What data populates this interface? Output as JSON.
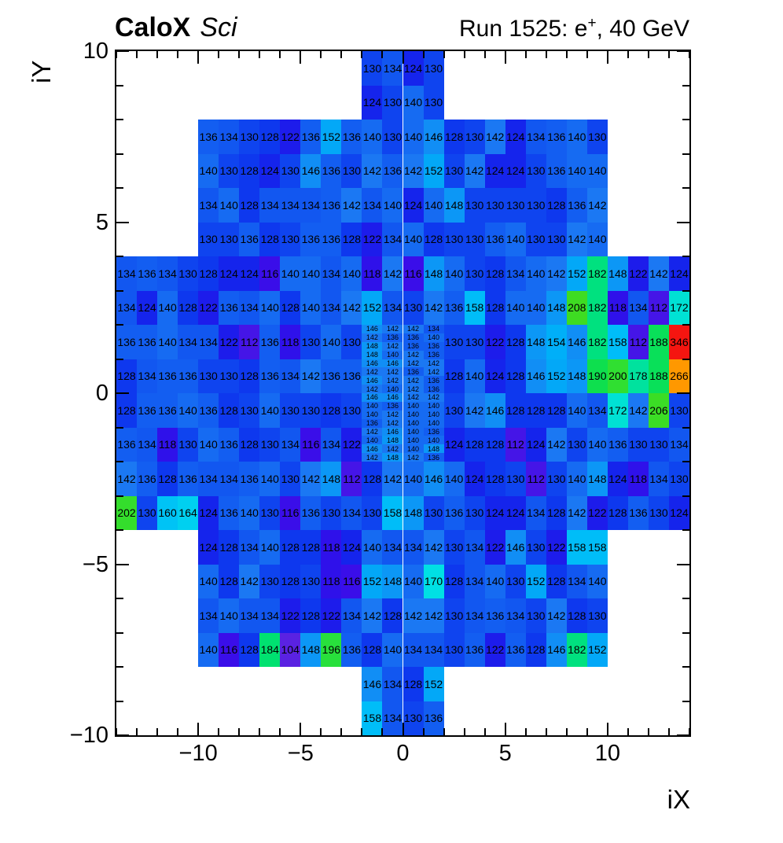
{
  "header": {
    "experiment_bold": "CaloX",
    "experiment_italic": "Sci",
    "run_prefix": "Run 1525: e",
    "run_sup": "+",
    "run_suffix": ", 40 GeV"
  },
  "axes": {
    "x": {
      "title": "iX",
      "range": [
        -14,
        14
      ],
      "major_ticks": [
        {
          "v": -10,
          "label": "−10"
        },
        {
          "v": -5,
          "label": "−5"
        },
        {
          "v": 0,
          "label": "0"
        },
        {
          "v": 5,
          "label": "5"
        },
        {
          "v": 10,
          "label": "10"
        }
      ]
    },
    "y": {
      "title": "iY",
      "range": [
        -10,
        10
      ],
      "major_ticks": [
        {
          "v": 10,
          "label": "10"
        },
        {
          "v": 5,
          "label": "5"
        },
        {
          "v": 0,
          "label": "0"
        },
        {
          "v": -5,
          "label": "−5"
        },
        {
          "v": -10,
          "label": "−10"
        }
      ]
    }
  },
  "chart_data": {
    "type": "heatmap",
    "title": "Run 1525: e+, 40 GeV",
    "xlabel": "iX",
    "ylabel": "iY",
    "xlim": [
      -14,
      14
    ],
    "ylim": [
      -10,
      10
    ],
    "z_range": [
      104,
      346
    ],
    "grid": false,
    "legend": false,
    "palette": [
      [
        104,
        "#5a22e2"
      ],
      [
        110,
        "#4a18e6"
      ],
      [
        116,
        "#3a0ee9"
      ],
      [
        120,
        "#2414ea"
      ],
      [
        124,
        "#1524ec"
      ],
      [
        128,
        "#0e38ee"
      ],
      [
        132,
        "#1050ef"
      ],
      [
        136,
        "#135ef1"
      ],
      [
        140,
        "#166bf2"
      ],
      [
        142,
        "#1b78f3"
      ],
      [
        146,
        "#118ef5"
      ],
      [
        150,
        "#06a0f6"
      ],
      [
        154,
        "#00aff8"
      ],
      [
        158,
        "#00bdf8"
      ],
      [
        164,
        "#00d0f0"
      ],
      [
        170,
        "#00e0e4"
      ],
      [
        174,
        "#00e2c4"
      ],
      [
        178,
        "#00e29e"
      ],
      [
        184,
        "#00e170"
      ],
      [
        190,
        "#0edf4e"
      ],
      [
        196,
        "#28e03c"
      ],
      [
        202,
        "#34de2c"
      ],
      [
        208,
        "#3edc22"
      ],
      [
        235,
        "#aad411"
      ],
      [
        266,
        "#ff9800"
      ],
      [
        305,
        "#ff5510"
      ],
      [
        346,
        "#f51510"
      ]
    ],
    "rows": [
      {
        "iy": 10,
        "rh": 1,
        "segments": [
          {
            "ix0": -2,
            "cw": 1,
            "values": [
              130,
              134,
              124,
              130
            ]
          }
        ]
      },
      {
        "iy": 9,
        "rh": 1,
        "segments": [
          {
            "ix0": -2,
            "cw": 1,
            "values": [
              124,
              130,
              140,
              130
            ]
          }
        ]
      },
      {
        "iy": 8,
        "rh": 1,
        "segments": [
          {
            "ix0": -10,
            "cw": 1,
            "values": [
              136,
              134,
              130,
              128,
              122,
              136,
              152,
              136,
              140,
              130,
              140,
              146,
              128,
              130,
              142,
              124,
              134,
              136,
              140,
              130
            ]
          }
        ]
      },
      {
        "iy": 7,
        "rh": 1,
        "segments": [
          {
            "ix0": -10,
            "cw": 1,
            "values": [
              140,
              130,
              128,
              124,
              130,
              146,
              136,
              130,
              142,
              136,
              142,
              152,
              130,
              142,
              124,
              124,
              130,
              136,
              140,
              140
            ]
          }
        ]
      },
      {
        "iy": 6,
        "rh": 1,
        "segments": [
          {
            "ix0": -10,
            "cw": 1,
            "values": [
              134,
              140,
              128,
              134,
              134,
              134,
              136,
              142,
              134,
              140,
              124,
              140,
              148,
              130,
              130,
              130,
              130,
              128,
              136,
              142
            ]
          }
        ]
      },
      {
        "iy": 5,
        "rh": 1,
        "segments": [
          {
            "ix0": -10,
            "cw": 1,
            "values": [
              130,
              130,
              136,
              128,
              130,
              136,
              136,
              128,
              122,
              134,
              140,
              128,
              130,
              130,
              136,
              140,
              130,
              130,
              142,
              140
            ]
          }
        ]
      },
      {
        "iy": 4,
        "rh": 1,
        "segments": [
          {
            "ix0": -14,
            "cw": 1,
            "values": [
              134,
              136,
              134,
              130,
              128,
              124,
              124,
              116,
              140,
              140,
              134,
              140,
              118,
              142,
              116,
              148,
              140,
              130,
              128,
              134,
              140,
              142,
              152,
              182,
              148,
              122,
              142,
              124
            ]
          }
        ]
      },
      {
        "iy": 3,
        "rh": 1,
        "segments": [
          {
            "ix0": -14,
            "cw": 1,
            "values": [
              134,
              124,
              140,
              128,
              122,
              136,
              134,
              140,
              128,
              140,
              134,
              142,
              152,
              134,
              130,
              142,
              136,
              158,
              128,
              140,
              140,
              148,
              208,
              182,
              118,
              134,
              112,
              172
            ]
          }
        ]
      },
      {
        "iy": 2,
        "rh": 1,
        "segments": [
          {
            "ix0": -14,
            "cw": 1,
            "values": [
              136,
              136,
              140,
              134,
              134,
              122,
              112,
              136,
              118,
              130,
              140,
              130
            ]
          },
          {
            "ix0": 2,
            "cw": 1,
            "values": [
              130,
              130,
              122,
              128,
              148,
              154,
              146,
              182,
              158,
              112,
              188,
              346
            ]
          }
        ]
      },
      {
        "iy": 1,
        "rh": 1,
        "segments": [
          {
            "ix0": -14,
            "cw": 1,
            "values": [
              128,
              134,
              136,
              136,
              130,
              130,
              128,
              136,
              134,
              142,
              136,
              136
            ]
          },
          {
            "ix0": 2,
            "cw": 1,
            "values": [
              128,
              140,
              124,
              128,
              146,
              152,
              148,
              190,
              200,
              178,
              188,
              266
            ]
          }
        ]
      },
      {
        "iy": 0,
        "rh": 1,
        "segments": [
          {
            "ix0": -14,
            "cw": 1,
            "values": [
              128,
              136,
              136,
              140,
              136,
              128,
              130,
              140,
              130,
              130,
              128,
              130
            ]
          },
          {
            "ix0": 2,
            "cw": 1,
            "values": [
              130,
              142,
              146,
              128,
              128,
              128,
              140,
              134,
              172,
              142,
              206,
              130
            ]
          }
        ]
      },
      {
        "iy": -1,
        "rh": 1,
        "segments": [
          {
            "ix0": -14,
            "cw": 1,
            "values": [
              136,
              134,
              118,
              130,
              140,
              136,
              128,
              130,
              134,
              116,
              134,
              122
            ]
          },
          {
            "ix0": 2,
            "cw": 1,
            "values": [
              124,
              128,
              128,
              112,
              124,
              142,
              130,
              140,
              136,
              130,
              130,
              134
            ]
          }
        ]
      },
      {
        "iy": 2.0,
        "rh": 0.25,
        "segments": [
          {
            "ix0": -2,
            "cw": 1,
            "values": [
              146,
              142,
              142,
              134
            ]
          }
        ]
      },
      {
        "iy": 1.75,
        "rh": 0.25,
        "segments": [
          {
            "ix0": -2,
            "cw": 1,
            "values": [
              142,
              136,
              136,
              140
            ]
          }
        ]
      },
      {
        "iy": 1.5,
        "rh": 0.25,
        "segments": [
          {
            "ix0": -2,
            "cw": 1,
            "values": [
              148,
              142,
              136,
              136
            ]
          }
        ]
      },
      {
        "iy": 1.25,
        "rh": 0.25,
        "segments": [
          {
            "ix0": -2,
            "cw": 1,
            "values": [
              148,
              140,
              142,
              136
            ]
          }
        ]
      },
      {
        "iy": 1.0,
        "rh": 0.25,
        "segments": [
          {
            "ix0": -2,
            "cw": 1,
            "values": [
              146,
              146,
              142,
              142
            ]
          }
        ]
      },
      {
        "iy": 0.75,
        "rh": 0.25,
        "segments": [
          {
            "ix0": -2,
            "cw": 1,
            "values": [
              142,
              142,
              136,
              142
            ]
          }
        ]
      },
      {
        "iy": 0.5,
        "rh": 0.25,
        "segments": [
          {
            "ix0": -2,
            "cw": 1,
            "values": [
              146,
              142,
              142,
              136
            ]
          }
        ]
      },
      {
        "iy": 0.25,
        "rh": 0.25,
        "segments": [
          {
            "ix0": -2,
            "cw": 1,
            "values": [
              142,
              140,
              142,
              136
            ]
          }
        ]
      },
      {
        "iy": 0.0,
        "rh": 0.25,
        "segments": [
          {
            "ix0": -2,
            "cw": 1,
            "values": [
              146,
              146,
              142,
              142
            ]
          }
        ]
      },
      {
        "iy": -0.25,
        "rh": 0.25,
        "segments": [
          {
            "ix0": -2,
            "cw": 1,
            "values": [
              140,
              136,
              140,
              140
            ]
          }
        ]
      },
      {
        "iy": -0.5,
        "rh": 0.25,
        "segments": [
          {
            "ix0": -2,
            "cw": 1,
            "values": [
              140,
              142,
              140,
              140
            ]
          }
        ]
      },
      {
        "iy": -0.75,
        "rh": 0.25,
        "segments": [
          {
            "ix0": -2,
            "cw": 1,
            "values": [
              136,
              142,
              140,
              140
            ]
          }
        ]
      },
      {
        "iy": -1.0,
        "rh": 0.25,
        "segments": [
          {
            "ix0": -2,
            "cw": 1,
            "values": [
              142,
              146,
              140,
              136
            ]
          }
        ]
      },
      {
        "iy": -1.25,
        "rh": 0.25,
        "segments": [
          {
            "ix0": -2,
            "cw": 1,
            "values": [
              140,
              148,
              140,
              140
            ]
          }
        ]
      },
      {
        "iy": -1.5,
        "rh": 0.25,
        "segments": [
          {
            "ix0": -2,
            "cw": 1,
            "values": [
              146,
              142,
              140,
              148
            ]
          }
        ]
      },
      {
        "iy": -1.75,
        "rh": 0.25,
        "segments": [
          {
            "ix0": -2,
            "cw": 1,
            "values": [
              142,
              148,
              142,
              136
            ]
          }
        ]
      },
      {
        "iy": -2,
        "rh": 1,
        "segments": [
          {
            "ix0": -14,
            "cw": 1,
            "values": [
              142,
              136,
              128,
              136,
              134,
              134,
              136,
              140,
              130,
              142,
              148,
              112,
              128,
              142,
              140,
              146,
              140,
              124,
              128,
              130,
              112,
              130,
              140,
              148,
              124,
              118,
              134,
              130
            ]
          }
        ]
      },
      {
        "iy": -3,
        "rh": 1,
        "segments": [
          {
            "ix0": -14,
            "cw": 1,
            "values": [
              202,
              130,
              160,
              164,
              124,
              136,
              140,
              130,
              116,
              136,
              130,
              134,
              130,
              158,
              148,
              130,
              136,
              130,
              124,
              124,
              134,
              128,
              142,
              122,
              128,
              136,
              130,
              124
            ]
          }
        ]
      },
      {
        "iy": -4,
        "rh": 1,
        "segments": [
          {
            "ix0": -10,
            "cw": 1,
            "values": [
              124,
              128,
              134,
              140,
              128,
              128,
              118,
              124,
              140,
              134,
              134,
              142,
              130,
              134,
              122,
              146,
              130,
              122,
              158,
              158
            ]
          }
        ]
      },
      {
        "iy": -5,
        "rh": 1,
        "segments": [
          {
            "ix0": -10,
            "cw": 1,
            "values": [
              140,
              128,
              142,
              130,
              128,
              130,
              118,
              116,
              152,
              148,
              140,
              170,
              128,
              134,
              140,
              130,
              152,
              128,
              134,
              140
            ]
          }
        ]
      },
      {
        "iy": -6,
        "rh": 1,
        "segments": [
          {
            "ix0": -10,
            "cw": 1,
            "values": [
              134,
              140,
              134,
              134,
              122,
              128,
              122,
              134,
              142,
              128,
              142,
              142,
              130,
              134,
              136,
              134,
              130,
              142,
              128,
              130
            ]
          }
        ]
      },
      {
        "iy": -7,
        "rh": 1,
        "segments": [
          {
            "ix0": -10,
            "cw": 1,
            "values": [
              140,
              116,
              128,
              184,
              104,
              148,
              196,
              136,
              128,
              140,
              134,
              134,
              130,
              136,
              122,
              136,
              128,
              146,
              182,
              152
            ]
          }
        ]
      },
      {
        "iy": -8,
        "rh": 1,
        "segments": [
          {
            "ix0": -2,
            "cw": 1,
            "values": [
              146,
              134,
              128,
              152
            ]
          }
        ]
      },
      {
        "iy": -9,
        "rh": 1,
        "segments": [
          {
            "ix0": -2,
            "cw": 1,
            "values": [
              158,
              134,
              130,
              136
            ]
          }
        ]
      }
    ]
  }
}
